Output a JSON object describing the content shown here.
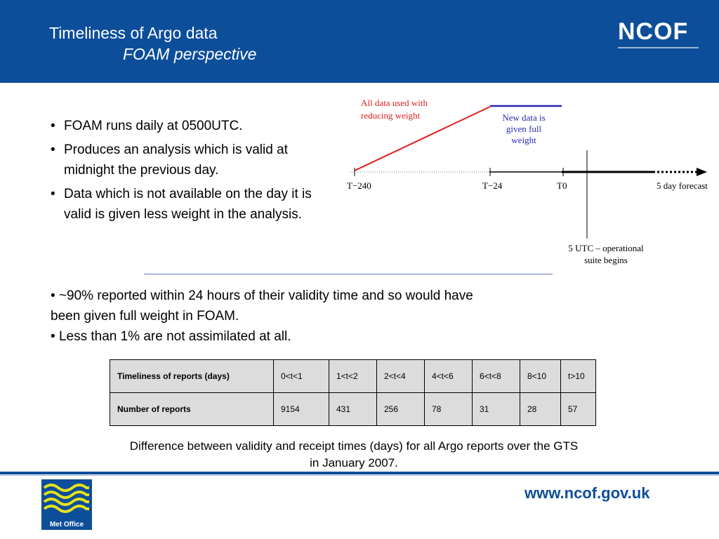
{
  "header": {
    "title_line1": "Timeliness of Argo data",
    "title_line2": "FOAM perspective",
    "logo_text": "NCOF",
    "background_color": "#0c4e9a"
  },
  "bullets_top": [
    "FOAM runs daily at 0500UTC.",
    "Produces an analysis which is valid at midnight the previous day.",
    "Data which is not available on the day it is valid is given less weight in the analysis."
  ],
  "diagram": {
    "red_label_line1": "All data used with",
    "red_label_line2": "reducing weight",
    "blue_label_line1": "New data is",
    "blue_label_line2": "given full",
    "blue_label_line3": "weight",
    "tick_t240": "T−240",
    "tick_t24": "T−24",
    "tick_t0": "T0",
    "forecast_label": "5 day forecast",
    "utc_label_line1": "5 UTC – operational",
    "utc_label_line2": "suite begins",
    "red_color": "#e0201e",
    "blue_color": "#2828b8"
  },
  "bullets_bottom": [
    "~90% reported within 24 hours of their validity time and so would have been given full weight in FOAM.",
    "Less than 1% are not assimilated at all."
  ],
  "table": {
    "row1_header": "Timeliness of reports (days)",
    "row2_header": "Number of reports",
    "columns": [
      "0<t<1",
      "1<t<2",
      "2<t<4",
      "4<t<6",
      "6<t<8",
      "8<10",
      "t>10"
    ],
    "counts": [
      "9154",
      "431",
      "256",
      "78",
      "31",
      "28",
      "57"
    ]
  },
  "caption": "Difference between validity and receipt times (days) for all Argo reports over the GTS in January 2007.",
  "footer": {
    "met_office_label": "Met Office",
    "url": "www.ncof.gov.uk"
  }
}
